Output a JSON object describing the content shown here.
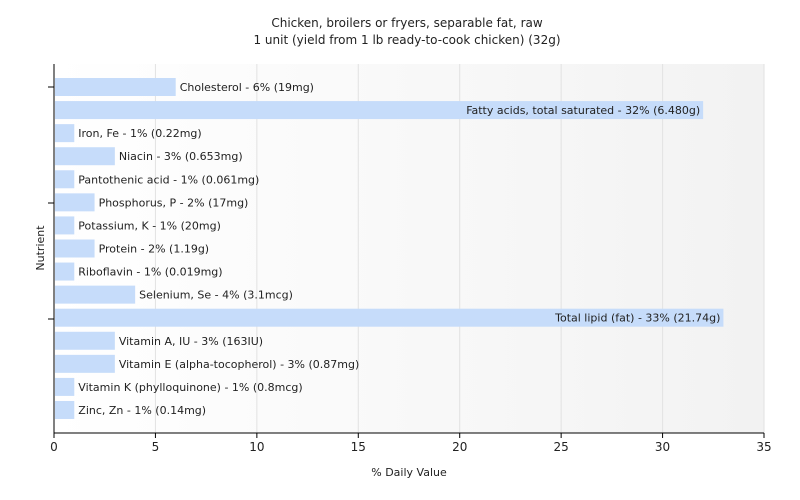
{
  "chart_data": {
    "type": "bar",
    "orientation": "horizontal",
    "title": "Chicken, broilers or fryers, separable fat, raw",
    "subtitle": "1 unit (yield from 1 lb ready-to-cook chicken) (32g)",
    "xlabel": "% Daily Value",
    "ylabel": "Nutrient",
    "xlim": [
      0,
      35
    ],
    "xticks": [
      0,
      5,
      10,
      15,
      20,
      25,
      30,
      35
    ],
    "grid": true,
    "bar_color": "#c6dcfa",
    "categories": [
      "Cholesterol",
      "Fatty acids, total saturated",
      "Iron, Fe",
      "Niacin",
      "Pantothenic acid",
      "Phosphorus, P",
      "Potassium, K",
      "Protein",
      "Riboflavin",
      "Selenium, Se",
      "Total lipid (fat)",
      "Vitamin A, IU",
      "Vitamin E (alpha-tocopherol)",
      "Vitamin K (phylloquinone)",
      "Zinc, Zn"
    ],
    "values": [
      6,
      32,
      1,
      3,
      1,
      2,
      1,
      2,
      1,
      4,
      33,
      3,
      3,
      1,
      1
    ],
    "labels": [
      "Cholesterol - 6% (19mg)",
      "Fatty acids, total saturated - 32% (6.480g)",
      "Iron, Fe - 1% (0.22mg)",
      "Niacin - 3% (0.653mg)",
      "Pantothenic acid - 1% (0.061mg)",
      "Phosphorus, P - 2% (17mg)",
      "Potassium, K - 1% (20mg)",
      "Protein - 2% (1.19g)",
      "Riboflavin - 1% (0.019mg)",
      "Selenium, Se - 4% (3.1mcg)",
      "Total lipid (fat) - 33% (21.74g)",
      "Vitamin A, IU - 3% (163IU)",
      "Vitamin E (alpha-tocopherol) - 3% (0.87mg)",
      "Vitamin K (phylloquinone) - 1% (0.8mcg)",
      "Zinc, Zn - 1% (0.14mg)"
    ]
  }
}
